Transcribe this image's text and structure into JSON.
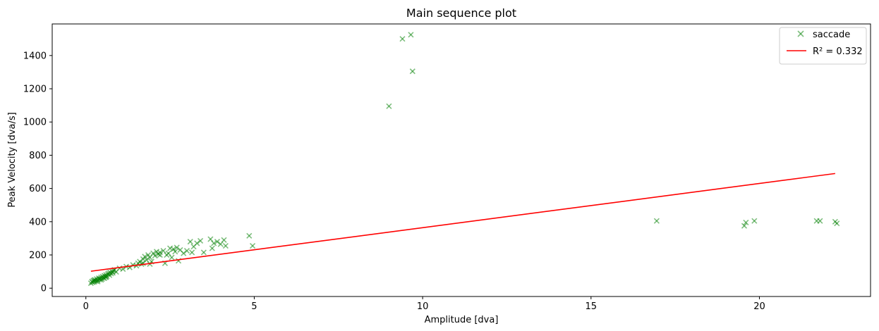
{
  "chart_data": {
    "type": "scatter",
    "title": "Main sequence plot",
    "xlabel": "Amplitude [dva]",
    "ylabel": "Peak Velocity [dva/s]",
    "xlim": [
      -1.0,
      23.3
    ],
    "ylim": [
      -50,
      1590
    ],
    "xticks": [
      0,
      5,
      10,
      15,
      20
    ],
    "yticks": [
      0,
      200,
      400,
      600,
      800,
      1000,
      1200,
      1400
    ],
    "grid": false,
    "legend_position": "top-right",
    "series": [
      {
        "name": "saccade",
        "kind": "scatter",
        "marker": "x",
        "color": "#008000",
        "alpha": 0.5,
        "points": [
          [
            0.15,
            30
          ],
          [
            0.18,
            40
          ],
          [
            0.2,
            35
          ],
          [
            0.22,
            45
          ],
          [
            0.25,
            38
          ],
          [
            0.27,
            50
          ],
          [
            0.3,
            42
          ],
          [
            0.32,
            55
          ],
          [
            0.35,
            48
          ],
          [
            0.38,
            60
          ],
          [
            0.4,
            52
          ],
          [
            0.42,
            58
          ],
          [
            0.45,
            65
          ],
          [
            0.48,
            55
          ],
          [
            0.5,
            70
          ],
          [
            0.52,
            62
          ],
          [
            0.55,
            75
          ],
          [
            0.58,
            68
          ],
          [
            0.6,
            80
          ],
          [
            0.62,
            72
          ],
          [
            0.65,
            85
          ],
          [
            0.68,
            90
          ],
          [
            0.7,
            78
          ],
          [
            0.72,
            95
          ],
          [
            0.75,
            88
          ],
          [
            0.78,
            100
          ],
          [
            0.8,
            92
          ],
          [
            0.82,
            105
          ],
          [
            0.85,
            110
          ],
          [
            0.9,
            98
          ],
          [
            0.35,
            40
          ],
          [
            0.45,
            50
          ],
          [
            0.55,
            60
          ],
          [
            0.25,
            48
          ],
          [
            0.6,
            66
          ],
          [
            1.0,
            120
          ],
          [
            1.1,
            115
          ],
          [
            1.2,
            130
          ],
          [
            1.3,
            125
          ],
          [
            1.4,
            140
          ],
          [
            1.5,
            135
          ],
          [
            1.55,
            150
          ],
          [
            1.6,
            160
          ],
          [
            1.65,
            145
          ],
          [
            1.7,
            175
          ],
          [
            1.75,
            190
          ],
          [
            1.8,
            170
          ],
          [
            1.85,
            200
          ],
          [
            1.9,
            185
          ],
          [
            1.95,
            160
          ],
          [
            2.0,
            210
          ],
          [
            2.05,
            195
          ],
          [
            2.1,
            220
          ],
          [
            2.15,
            205
          ],
          [
            2.2,
            215
          ],
          [
            2.3,
            225
          ],
          [
            2.35,
            150
          ],
          [
            2.4,
            200
          ],
          [
            2.5,
            240
          ],
          [
            2.55,
            185
          ],
          [
            2.6,
            235
          ],
          [
            2.65,
            220
          ],
          [
            2.7,
            245
          ],
          [
            2.75,
            165
          ],
          [
            2.8,
            230
          ],
          [
            2.9,
            210
          ],
          [
            3.0,
            225
          ],
          [
            3.1,
            280
          ],
          [
            3.15,
            215
          ],
          [
            3.2,
            250
          ],
          [
            3.3,
            270
          ],
          [
            3.4,
            285
          ],
          [
            3.5,
            215
          ],
          [
            3.7,
            295
          ],
          [
            3.75,
            240
          ],
          [
            3.8,
            270
          ],
          [
            3.9,
            280
          ],
          [
            4.0,
            265
          ],
          [
            4.1,
            290
          ],
          [
            4.15,
            255
          ],
          [
            1.7,
            150
          ],
          [
            1.9,
            145
          ],
          [
            2.2,
            200
          ],
          [
            2.45,
            210
          ],
          [
            4.85,
            315
          ],
          [
            4.95,
            255
          ],
          [
            9.0,
            1095
          ],
          [
            9.4,
            1500
          ],
          [
            9.65,
            1525
          ],
          [
            9.7,
            1305
          ],
          [
            16.95,
            405
          ],
          [
            19.55,
            375
          ],
          [
            19.6,
            395
          ],
          [
            19.85,
            405
          ],
          [
            21.7,
            405
          ],
          [
            21.8,
            405
          ],
          [
            22.25,
            400
          ],
          [
            22.3,
            390
          ]
        ]
      },
      {
        "name": "R² = 0.332",
        "kind": "line",
        "color": "#ff0000",
        "points": [
          [
            0.15,
            102
          ],
          [
            22.25,
            690
          ]
        ]
      }
    ]
  }
}
